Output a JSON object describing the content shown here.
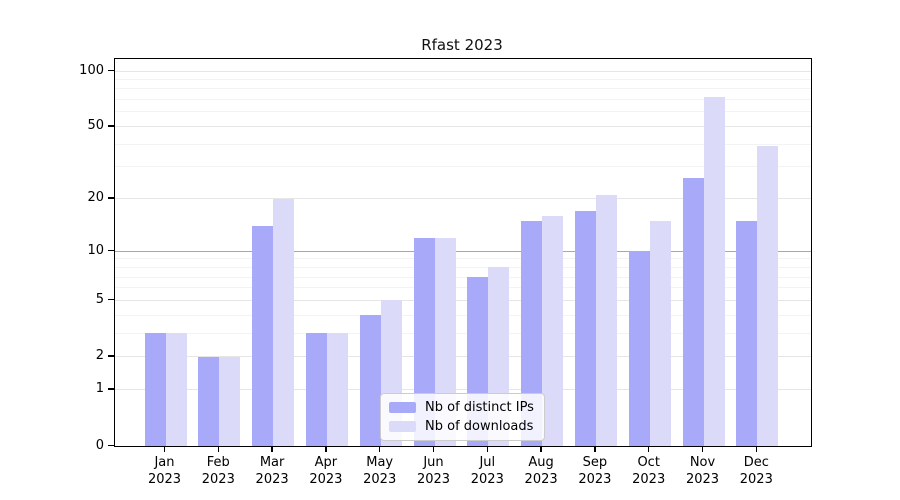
{
  "title": "Rfast 2023",
  "colors": {
    "bar_dark": "#a9a9f9",
    "bar_light": "#dbdbf9",
    "grid_major": "#e6e6e6",
    "grid_minor": "#f3f3f3",
    "grid_emphasis": "#a8a8a8",
    "axis": "#000000"
  },
  "legend": {
    "items": [
      {
        "label": "Nb of distinct IPs",
        "color_key": "bar_dark"
      },
      {
        "label": "Nb of downloads",
        "color_key": "bar_light"
      }
    ]
  },
  "chart_data": {
    "type": "bar",
    "title": "Rfast 2023",
    "categories": [
      "Jan 2023",
      "Feb 2023",
      "Mar 2023",
      "Apr 2023",
      "May 2023",
      "Jun 2023",
      "Jul 2023",
      "Aug 2023",
      "Sep 2023",
      "Oct 2023",
      "Nov 2023",
      "Dec 2023"
    ],
    "series": [
      {
        "name": "Nb of distinct IPs",
        "color_key": "bar_dark",
        "values": [
          3,
          2,
          14,
          3,
          4,
          12,
          7,
          15,
          17,
          10,
          26,
          15
        ]
      },
      {
        "name": "Nb of downloads",
        "color_key": "bar_light",
        "values": [
          3,
          2,
          20,
          3,
          5,
          12,
          8,
          16,
          21,
          15,
          72,
          39
        ]
      }
    ],
    "xlabel": "",
    "ylabel": "",
    "yscale": "log1p",
    "yticks": [
      0,
      1,
      2,
      5,
      10,
      20,
      50,
      100
    ],
    "minor_gridlines": [
      3,
      4,
      6,
      7,
      8,
      9,
      30,
      40,
      60,
      70,
      80,
      90
    ],
    "emphasized_gridline": 10,
    "ylim": [
      0,
      117
    ],
    "grid": true,
    "legend_position": "lower center"
  }
}
